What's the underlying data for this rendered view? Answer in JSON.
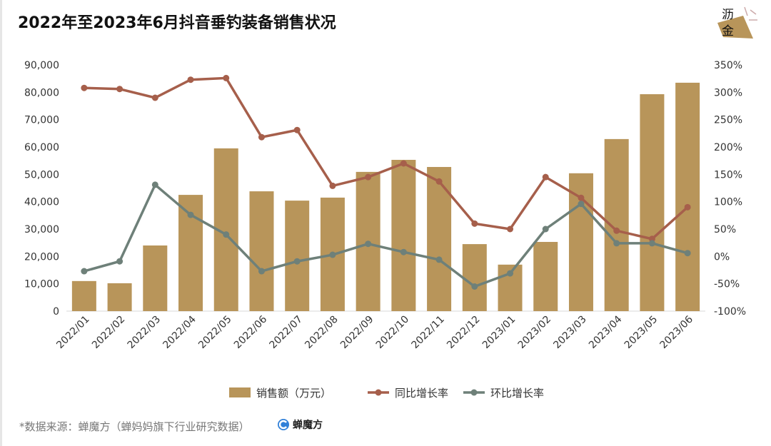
{
  "title": "2022年至2023年6月抖音垂钓装备销售状况",
  "logo": {
    "text": "沥金",
    "color": "#B8955A"
  },
  "source": "*数据来源：蝉魔方（蝉妈妈旗下行业研究数据）",
  "brand": "蝉魔方",
  "chart_data": {
    "type": "bar+line",
    "categories": [
      "2022/01",
      "2022/02",
      "2022/03",
      "2022/04",
      "2022/05",
      "2022/06",
      "2022/07",
      "2022/08",
      "2022/09",
      "2022/10",
      "2022/11",
      "2022/12",
      "2023/01",
      "2023/02",
      "2023/03",
      "2023/04",
      "2023/05",
      "2023/06"
    ],
    "series": [
      {
        "name": "销售额（万元）",
        "type": "bar",
        "axis": "left",
        "color": "#B8955A",
        "values": [
          11000,
          10200,
          24000,
          42500,
          59500,
          43800,
          40400,
          41500,
          50900,
          55300,
          52700,
          24500,
          17000,
          25300,
          50400,
          62900,
          79300,
          83500
        ]
      },
      {
        "name": "同比增长率",
        "type": "line",
        "axis": "right",
        "color": "#A65F4B",
        "values": [
          308,
          306,
          290,
          323,
          326,
          218,
          231,
          129,
          145,
          170,
          137,
          60,
          50,
          145,
          107,
          47,
          32,
          90
        ]
      },
      {
        "name": "环比增长率",
        "type": "line",
        "axis": "right",
        "color": "#6E8079",
        "values": [
          -27,
          -9,
          131,
          76,
          40,
          -27,
          -9,
          3,
          23,
          8,
          -6,
          -55,
          -31,
          50,
          96,
          24,
          24,
          6
        ]
      }
    ],
    "left_axis": {
      "min": 0,
      "max": 90000,
      "ticks": [
        "0",
        "10,000",
        "20,000",
        "30,000",
        "40,000",
        "50,000",
        "60,000",
        "70,000",
        "80,000",
        "90,000"
      ]
    },
    "right_axis": {
      "min": -100,
      "max": 350,
      "unit": "%",
      "ticks": [
        "-100%",
        "-50%",
        "0%",
        "50%",
        "100%",
        "150%",
        "200%",
        "250%",
        "300%",
        "350%"
      ]
    },
    "grid": false,
    "legend": "bottom"
  }
}
